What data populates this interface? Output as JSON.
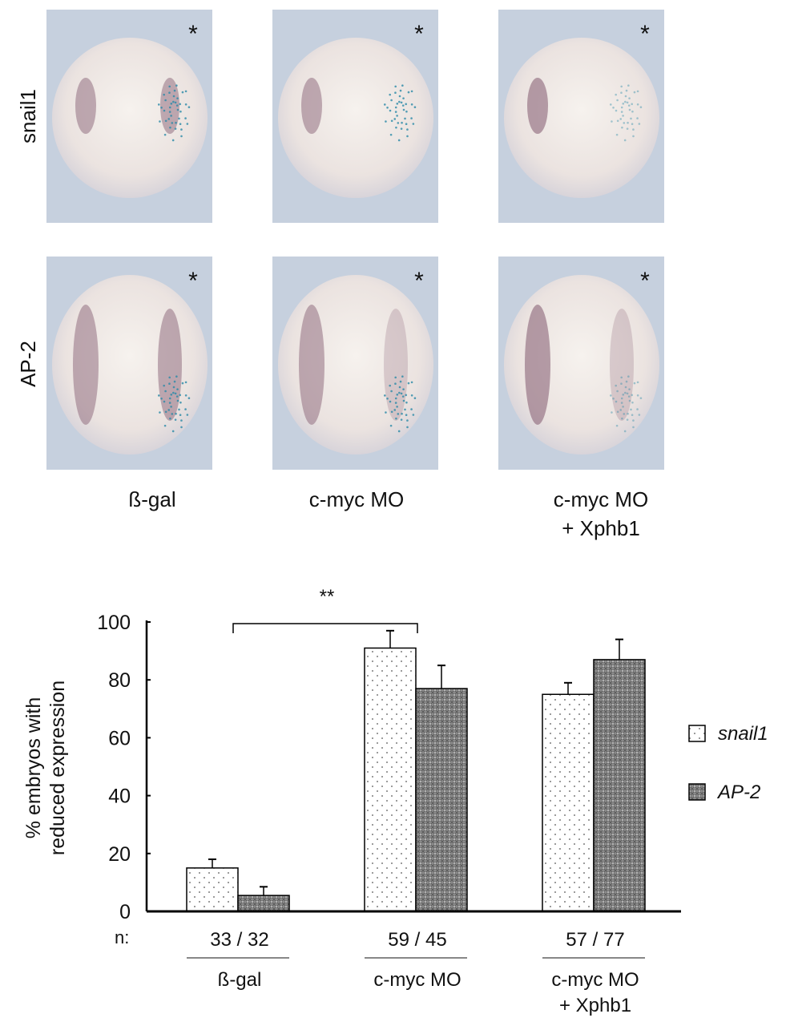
{
  "panels": {
    "row_labels": [
      "snail1",
      "AP-2"
    ],
    "column_labels": [
      [
        "ß-gal"
      ],
      [
        "c-myc MO"
      ],
      [
        "c-myc MO",
        "+ Xphb1"
      ]
    ],
    "injected_side_marker": "*",
    "background_color": "#c6d0de"
  },
  "chart_data": {
    "type": "bar",
    "categories": [
      "ß-gal",
      "c-myc MO",
      "c-myc MO + Xphb1"
    ],
    "category_lines": [
      [
        "ß-gal"
      ],
      [
        "c-myc MO"
      ],
      [
        "c-myc MO",
        "+ Xphb1"
      ]
    ],
    "series": [
      {
        "name": "snail1",
        "values": [
          15,
          91,
          75
        ],
        "errors": [
          3,
          6,
          4
        ],
        "fill": "light dotted"
      },
      {
        "name": "AP-2",
        "values": [
          5.5,
          77,
          87
        ],
        "errors": [
          3,
          8,
          7
        ],
        "fill": "dark crosshatch"
      }
    ],
    "ylabel_lines": [
      "% embryos with",
      "reduced expression"
    ],
    "ylim": [
      0,
      100
    ],
    "yticks": [
      0,
      20,
      40,
      60,
      80,
      100
    ],
    "n_label": "n:",
    "n_values": [
      "33 / 32",
      "59 / 45",
      "57 / 77"
    ],
    "significance": {
      "from": "ß-gal",
      "to": "c-myc MO",
      "label": "**"
    },
    "legend_position": "right",
    "grid": false
  }
}
